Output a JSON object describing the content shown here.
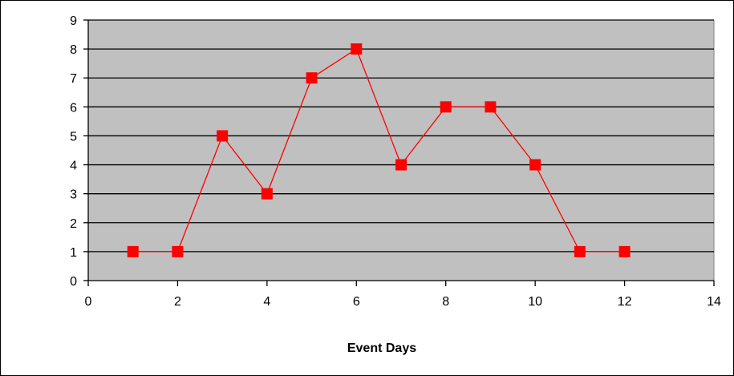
{
  "chart_data": {
    "type": "line",
    "title": "",
    "xlabel": "Event Days",
    "ylabel": "",
    "xlim": [
      0,
      14
    ],
    "ylim": [
      0,
      9
    ],
    "x_ticks": [
      0,
      2,
      4,
      6,
      8,
      10,
      12,
      14
    ],
    "y_ticks": [
      0,
      1,
      2,
      3,
      4,
      5,
      6,
      7,
      8,
      9
    ],
    "grid": "horizontal",
    "legend": "none",
    "series": [
      {
        "x": [
          1,
          2,
          3,
          4,
          5,
          6,
          7,
          8,
          9,
          10,
          11,
          12
        ],
        "values": [
          1,
          1,
          5,
          3,
          7,
          8,
          4,
          6,
          6,
          4,
          1,
          1
        ],
        "color": "#ff0000",
        "marker": "square"
      }
    ]
  },
  "colors": {
    "plot_background": "#c0c0c0",
    "gridline": "#000000",
    "series": "#ff0000"
  }
}
